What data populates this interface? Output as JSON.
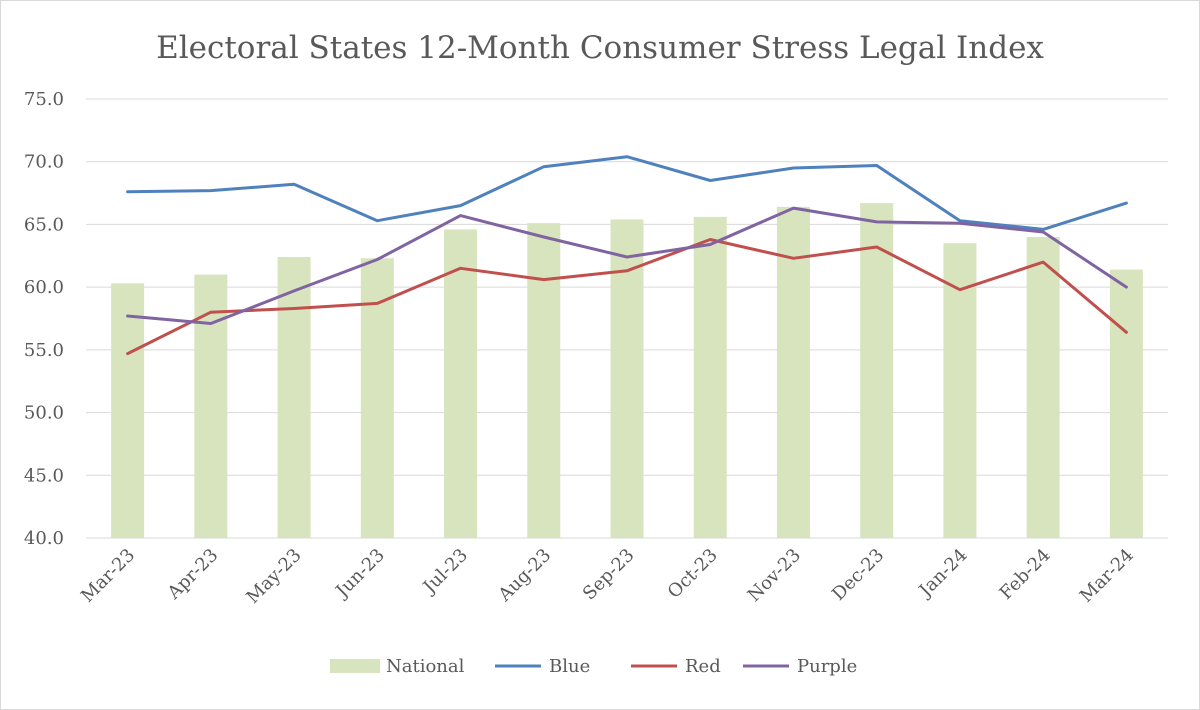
{
  "chart_data": {
    "type": "bar",
    "title": "Electoral States 12-Month Consumer Stress Legal Index",
    "xlabel": "",
    "ylabel": "",
    "ylim": [
      40.0,
      75.0
    ],
    "yticks": [
      "40.0",
      "45.0",
      "50.0",
      "55.0",
      "60.0",
      "65.0",
      "70.0",
      "75.0"
    ],
    "categories": [
      "Mar-23",
      "Apr-23",
      "May-23",
      "Jun-23",
      "Jul-23",
      "Aug-23",
      "Sep-23",
      "Oct-23",
      "Nov-23",
      "Dec-23",
      "Jan-24",
      "Feb-24",
      "Mar-24"
    ],
    "grid": true,
    "legend_position": "bottom",
    "series": [
      {
        "name": "National",
        "kind": "bar",
        "color": "#d7e4bd",
        "values": [
          60.3,
          61.0,
          62.4,
          62.3,
          64.6,
          65.1,
          65.4,
          65.6,
          66.4,
          66.7,
          63.5,
          64.0,
          61.4
        ]
      },
      {
        "name": "Blue",
        "kind": "line",
        "color": "#4f81bd",
        "values": [
          67.6,
          67.7,
          68.2,
          65.3,
          66.5,
          69.6,
          70.4,
          68.5,
          69.5,
          69.7,
          65.3,
          64.6,
          66.7
        ]
      },
      {
        "name": "Red",
        "kind": "line",
        "color": "#c0504d",
        "values": [
          54.7,
          58.0,
          58.3,
          58.7,
          61.5,
          60.6,
          61.3,
          63.8,
          62.3,
          63.2,
          59.8,
          62.0,
          56.4
        ]
      },
      {
        "name": "Purple",
        "kind": "line",
        "color": "#8064a2",
        "values": [
          57.7,
          57.1,
          59.7,
          62.2,
          65.7,
          64.0,
          62.4,
          63.4,
          66.3,
          65.2,
          65.1,
          64.4,
          60.0
        ]
      }
    ]
  }
}
